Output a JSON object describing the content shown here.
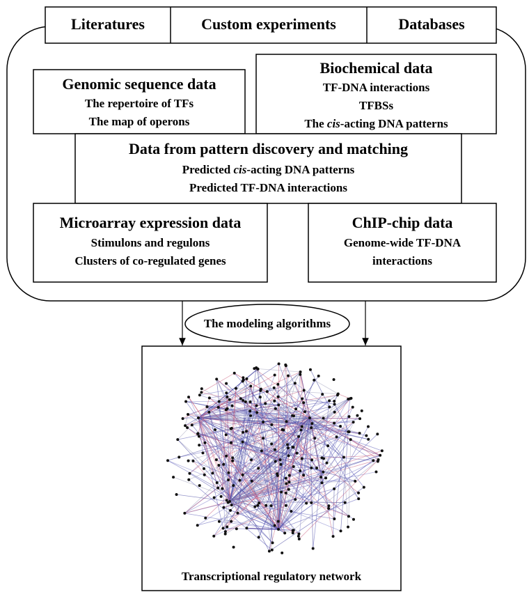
{
  "sources": [
    "Literatures",
    "Custom experiments",
    "Databases"
  ],
  "boxes": [
    {
      "title": "Genomic sequence data",
      "lines": [
        "The repertoire of TFs",
        "The map of operons"
      ]
    },
    {
      "title": "Biochemical data",
      "lines": [
        "TF-DNA interactions",
        "TFBSs",
        [
          "The ",
          "cis",
          "-acting DNA patterns"
        ]
      ]
    },
    {
      "title": "Data from pattern discovery and matching",
      "lines": [
        [
          "Predicted ",
          "cis",
          "-acting DNA patterns"
        ],
        "Predicted TF-DNA interactions"
      ]
    },
    {
      "title": "Microarray expression data",
      "lines": [
        "Stimulons and regulons",
        "Clusters of co-regulated genes"
      ]
    },
    {
      "title": "ChIP-chip data",
      "lines": [
        "Genome-wide TF-DNA",
        "interactions"
      ]
    }
  ],
  "algorithm": "The modeling algorithms",
  "output": "Transcriptional regulatory network"
}
